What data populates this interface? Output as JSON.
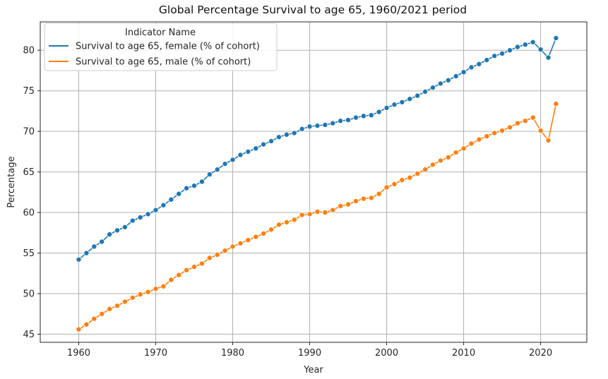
{
  "chart_data": {
    "type": "line",
    "title": "Global Percentage Survival to age 65, 1960/2021 period",
    "xlabel": "Year",
    "ylabel": "Percentage",
    "xlim": [
      1955,
      2026
    ],
    "ylim": [
      44,
      83.5
    ],
    "xticks": [
      1960,
      1970,
      1980,
      1990,
      2000,
      2010,
      2020
    ],
    "yticks": [
      45,
      50,
      55,
      60,
      65,
      70,
      75,
      80
    ],
    "grid": true,
    "legend": {
      "title": "Indicator Name",
      "placement": "top-left"
    },
    "x": [
      1960,
      1961,
      1962,
      1963,
      1964,
      1965,
      1966,
      1967,
      1968,
      1969,
      1970,
      1971,
      1972,
      1973,
      1974,
      1975,
      1976,
      1977,
      1978,
      1979,
      1980,
      1981,
      1982,
      1983,
      1984,
      1985,
      1986,
      1987,
      1988,
      1989,
      1990,
      1991,
      1992,
      1993,
      1994,
      1995,
      1996,
      1997,
      1998,
      1999,
      2000,
      2001,
      2002,
      2003,
      2004,
      2005,
      2006,
      2007,
      2008,
      2009,
      2010,
      2011,
      2012,
      2013,
      2014,
      2015,
      2016,
      2017,
      2018,
      2019,
      2020,
      2021,
      2022
    ],
    "series": [
      {
        "name": "Survival to age 65, female (% of cohort)",
        "color": "#1f77b4",
        "values": [
          54.2,
          55.0,
          55.8,
          56.4,
          57.3,
          57.8,
          58.2,
          59.0,
          59.4,
          59.8,
          60.3,
          60.9,
          61.6,
          62.3,
          63.0,
          63.3,
          63.8,
          64.7,
          65.3,
          66.0,
          66.5,
          67.1,
          67.5,
          67.9,
          68.4,
          68.8,
          69.3,
          69.6,
          69.8,
          70.3,
          70.6,
          70.7,
          70.8,
          71.0,
          71.3,
          71.4,
          71.7,
          71.9,
          72.0,
          72.4,
          72.9,
          73.3,
          73.6,
          74.0,
          74.4,
          74.9,
          75.4,
          75.9,
          76.3,
          76.8,
          77.3,
          77.9,
          78.3,
          78.8,
          79.3,
          79.6,
          80.0,
          80.4,
          80.7,
          81.0,
          80.1,
          79.1,
          81.5
        ]
      },
      {
        "name": "Survival to age 65, male (% of cohort)",
        "color": "#ff7f0e",
        "values": [
          45.6,
          46.2,
          46.9,
          47.5,
          48.1,
          48.5,
          49.0,
          49.5,
          49.9,
          50.2,
          50.6,
          50.9,
          51.7,
          52.3,
          52.9,
          53.3,
          53.7,
          54.4,
          54.8,
          55.3,
          55.8,
          56.2,
          56.6,
          57.0,
          57.4,
          57.9,
          58.5,
          58.8,
          59.1,
          59.7,
          59.8,
          60.1,
          60.0,
          60.3,
          60.8,
          61.0,
          61.4,
          61.7,
          61.8,
          62.3,
          63.1,
          63.5,
          64.0,
          64.3,
          64.8,
          65.3,
          65.9,
          66.4,
          66.8,
          67.4,
          67.9,
          68.5,
          69.0,
          69.4,
          69.8,
          70.1,
          70.5,
          71.0,
          71.3,
          71.7,
          70.1,
          68.9,
          73.4
        ]
      }
    ]
  }
}
